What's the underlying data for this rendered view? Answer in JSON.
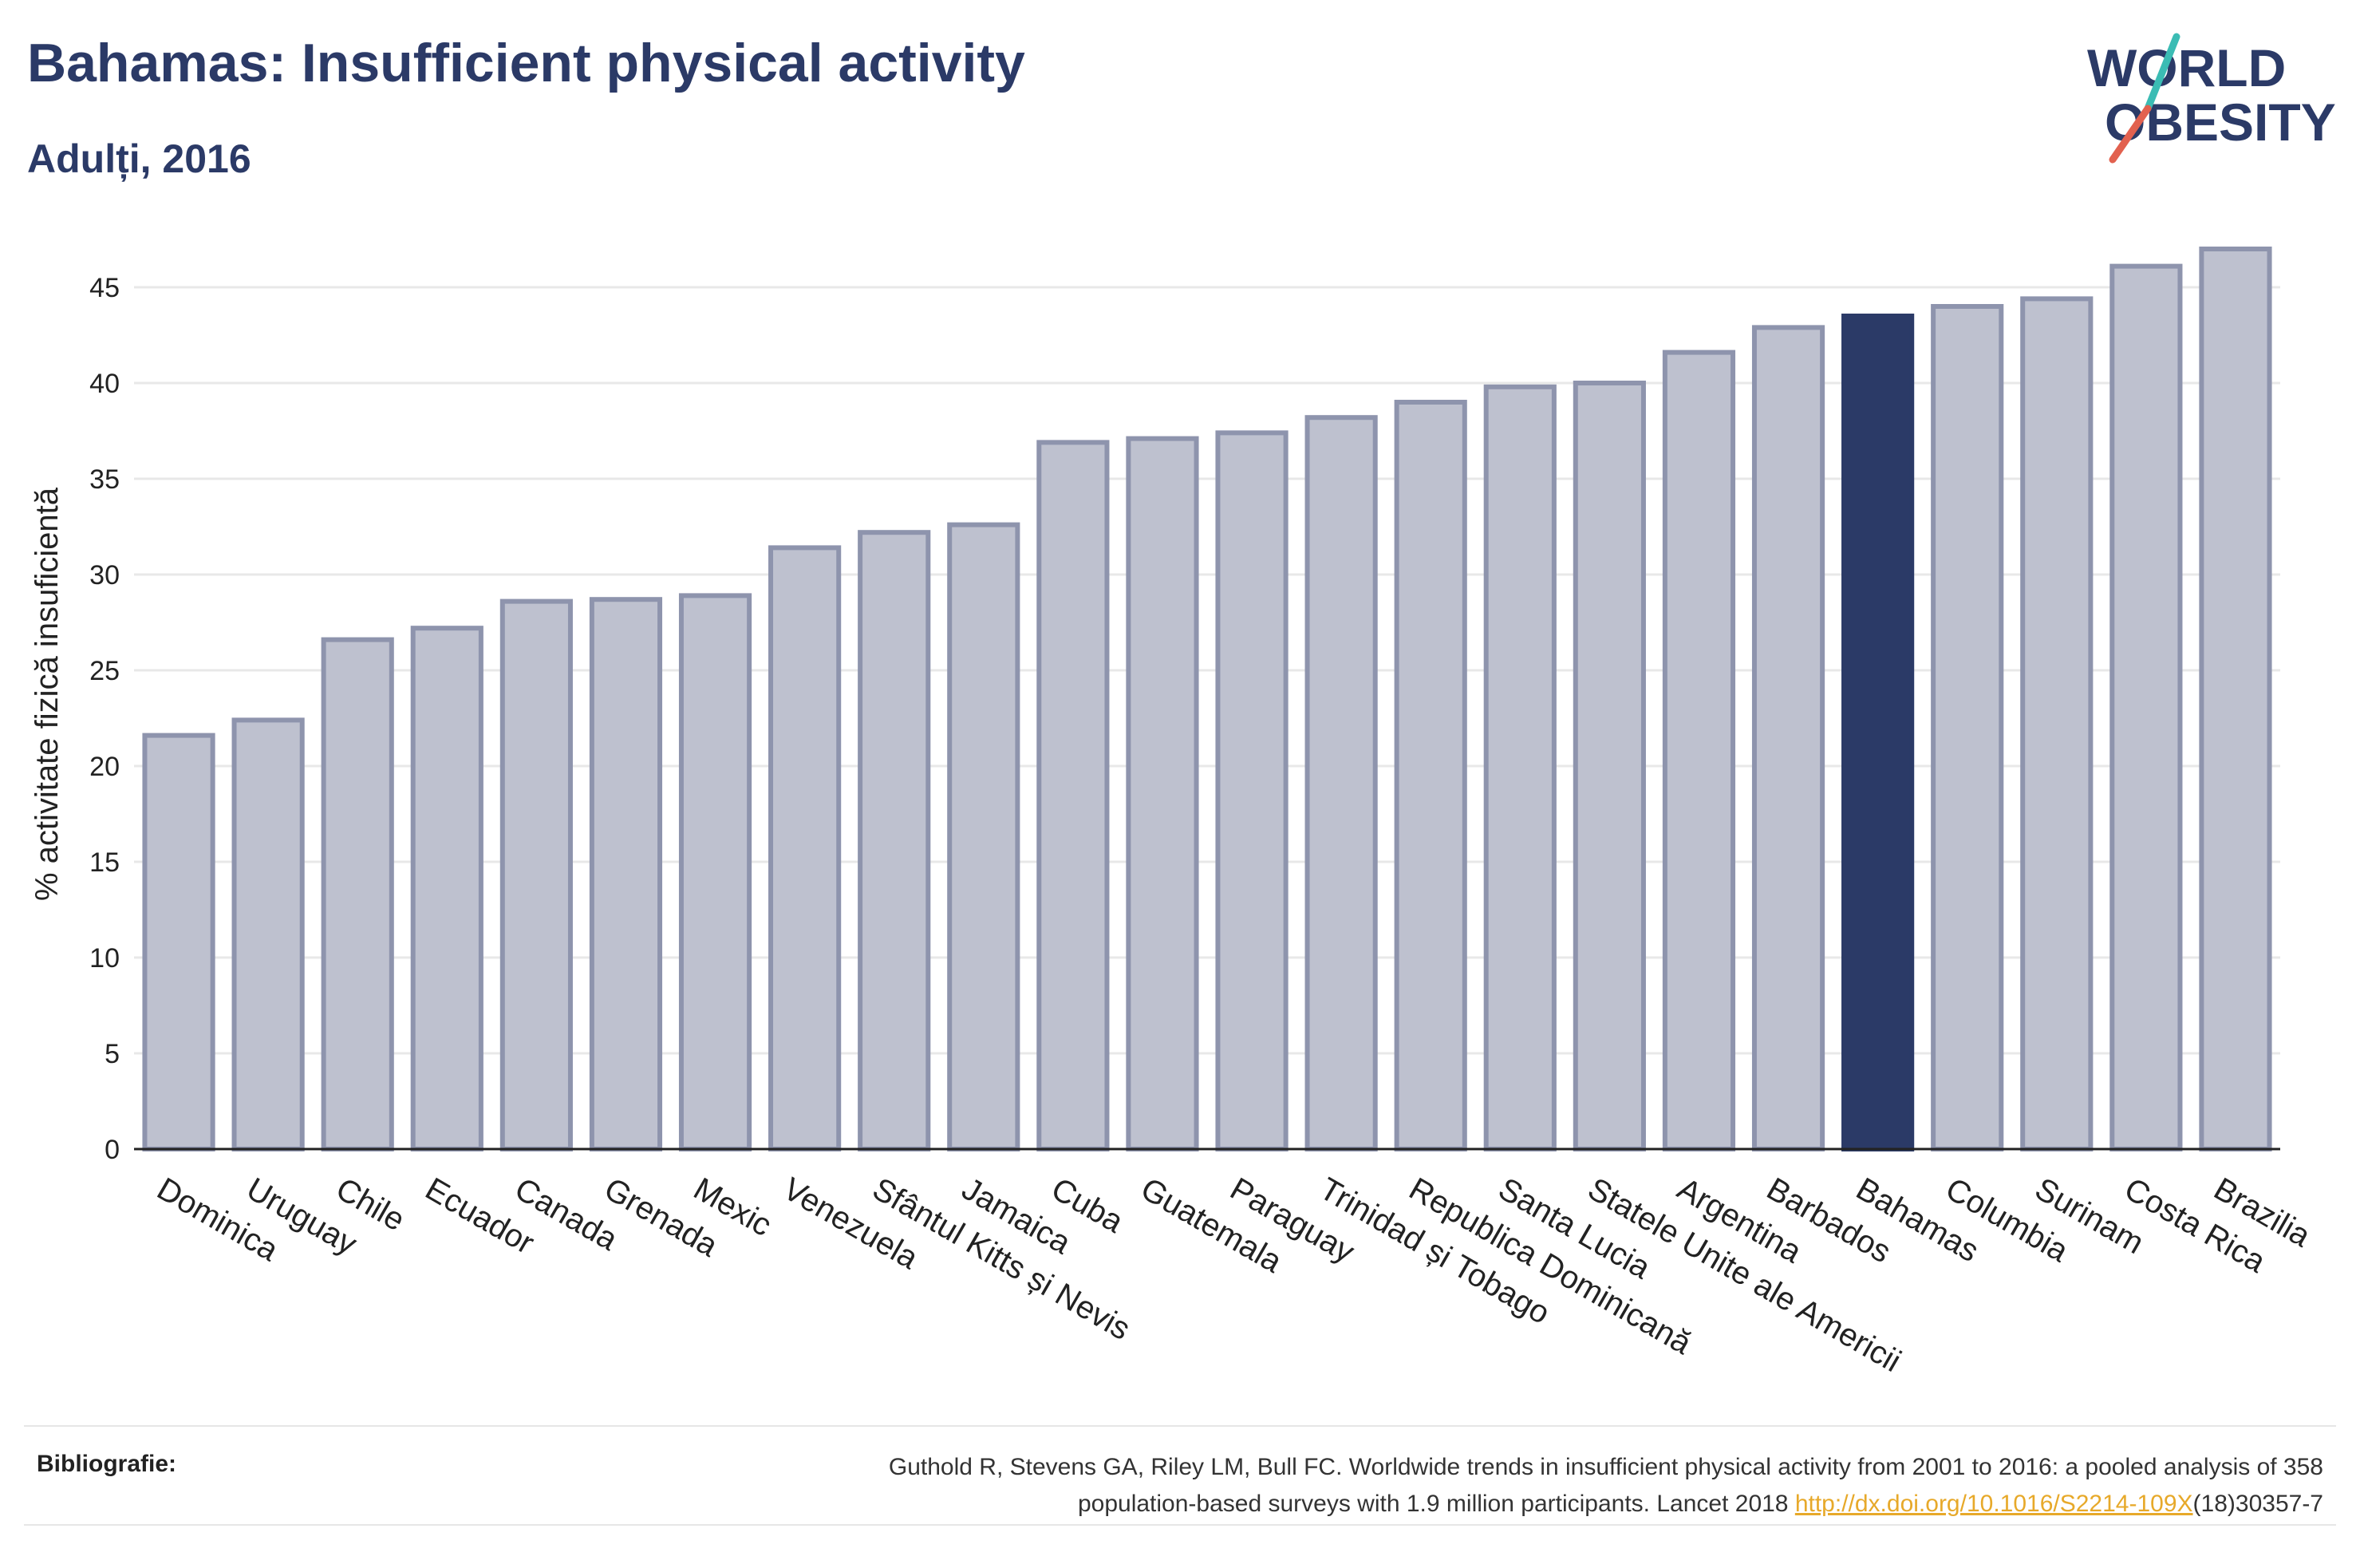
{
  "header": {
    "title": "Bahamas: Insufficient physical activity",
    "subtitle": "Adulți, 2016"
  },
  "logo": {
    "line1": "WORLD",
    "line2": "OBESITY",
    "accent_teal": "#3bbcb4",
    "accent_red": "#e2614f",
    "color": "#2b3a67"
  },
  "colors": {
    "bar": "#bec1cf",
    "bar_stroke": "#8e94ad",
    "highlight": "#2b3a67",
    "grid": "#e8e8e8"
  },
  "chart_data": {
    "type": "bar",
    "title": "Bahamas: Insufficient physical activity",
    "subtitle": "Adulți, 2016",
    "xlabel": "",
    "ylabel": "% activitate fizică insuficientă",
    "ylim": [
      0,
      47.5
    ],
    "yticks": [
      0,
      5,
      10,
      15,
      20,
      25,
      30,
      35,
      40,
      45
    ],
    "grid": true,
    "highlight": "Bahamas",
    "categories": [
      "Dominica",
      "Uruguay",
      "Chile",
      "Ecuador",
      "Canada",
      "Grenada",
      "Mexic",
      "Venezuela",
      "Sfântul Kitts și Nevis",
      "Jamaica",
      "Cuba",
      "Guatemala",
      "Paraguay",
      "Trinidad și Tobago",
      "Republica Dominicană",
      "Santa Lucia",
      "Statele Unite ale Americii",
      "Argentina",
      "Barbados",
      "Bahamas",
      "Columbia",
      "Surinam",
      "Costa Rica",
      "Brazilia"
    ],
    "values": [
      21.6,
      22.4,
      26.6,
      27.2,
      28.6,
      28.7,
      28.9,
      31.4,
      32.2,
      32.6,
      36.9,
      37.1,
      37.4,
      38.2,
      39.0,
      39.8,
      40.0,
      41.6,
      42.9,
      43.5,
      44.0,
      44.4,
      46.1,
      47.0
    ]
  },
  "bibliography": {
    "label": "Bibliografie:",
    "text_line1": "Guthold R, Stevens GA, Riley LM, Bull FC. Worldwide trends in insufficient physical activity from 2001 to 2016: a pooled analysis of 358",
    "text_line2_pre": "population-based surveys with 1.9 million participants. Lancet 2018 ",
    "link": "http://dx.doi.org/10.1016/S2214-109X",
    "text_line2_post": "(18)30357-7"
  }
}
